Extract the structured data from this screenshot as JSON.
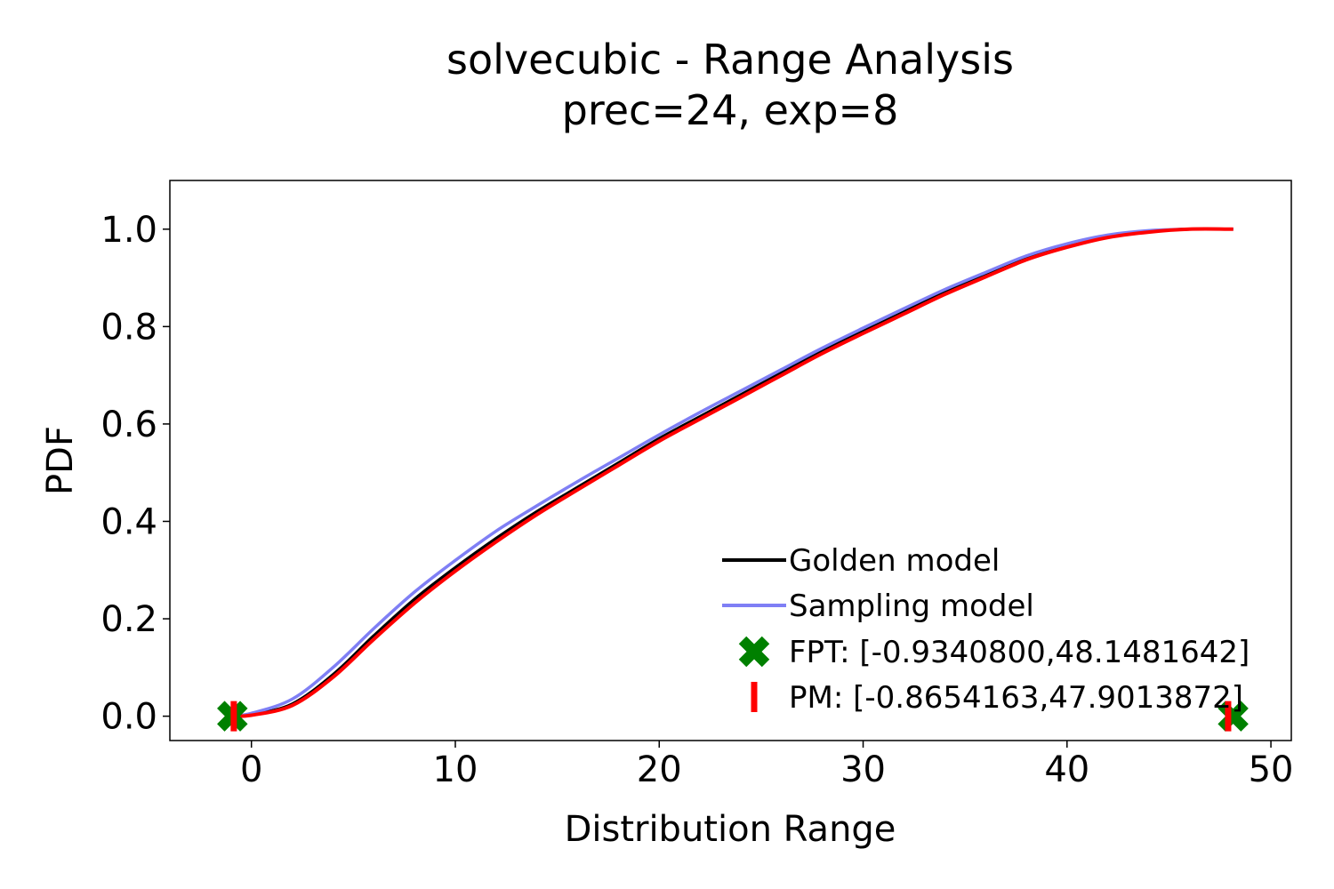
{
  "chart_data": {
    "type": "line",
    "title": "solvecubic - Range Analysis",
    "subtitle": "prec=24, exp=8",
    "xlabel": "Distribution Range",
    "ylabel": "PDF",
    "xlim": [
      -4,
      51
    ],
    "ylim": [
      -0.05,
      1.1
    ],
    "xticks": [
      0,
      10,
      20,
      30,
      40,
      50
    ],
    "yticks": [
      0.0,
      0.2,
      0.4,
      0.6,
      0.8,
      1.0
    ],
    "xtick_labels": [
      "0",
      "10",
      "20",
      "30",
      "40",
      "50"
    ],
    "ytick_labels": [
      "0.0",
      "0.2",
      "0.4",
      "0.6",
      "0.8",
      "1.0"
    ],
    "grid": false,
    "legend_position": "lower-right",
    "series": [
      {
        "name": "Golden model",
        "color": "#000000",
        "x": [
          -0.93,
          0,
          2,
          4,
          6,
          8,
          10,
          12,
          14,
          16,
          18,
          20,
          22,
          24,
          26,
          28,
          30,
          32,
          34,
          36,
          38,
          40,
          42,
          44,
          46,
          48.15
        ],
        "y": [
          0.0,
          0.003,
          0.025,
          0.085,
          0.165,
          0.24,
          0.305,
          0.365,
          0.42,
          0.47,
          0.52,
          0.57,
          0.615,
          0.66,
          0.705,
          0.75,
          0.79,
          0.83,
          0.87,
          0.905,
          0.94,
          0.965,
          0.985,
          0.995,
          1.0,
          1.0
        ]
      },
      {
        "name": "Sampling model",
        "color": "#7f7ff5",
        "x": [
          -0.93,
          0,
          2,
          4,
          6,
          8,
          10,
          12,
          14,
          16,
          18,
          20,
          22,
          24,
          26,
          28,
          30,
          32,
          34,
          36,
          38,
          40,
          42,
          44,
          46,
          48.15
        ],
        "y": [
          0.0,
          0.006,
          0.035,
          0.1,
          0.18,
          0.255,
          0.32,
          0.38,
          0.432,
          0.482,
          0.53,
          0.578,
          0.624,
          0.668,
          0.712,
          0.756,
          0.797,
          0.837,
          0.876,
          0.911,
          0.945,
          0.97,
          0.988,
          0.997,
          1.0,
          1.0
        ]
      },
      {
        "name": "",
        "color": "#ff0000",
        "x": [
          -0.93,
          0,
          2,
          4,
          6,
          8,
          10,
          12,
          14,
          16,
          18,
          20,
          22,
          24,
          26,
          28,
          30,
          32,
          34,
          36,
          38,
          40,
          42,
          44,
          46,
          48.15
        ],
        "y": [
          0.0,
          0.002,
          0.022,
          0.08,
          0.158,
          0.232,
          0.298,
          0.358,
          0.414,
          0.465,
          0.515,
          0.565,
          0.61,
          0.655,
          0.7,
          0.745,
          0.786,
          0.826,
          0.866,
          0.902,
          0.937,
          0.963,
          0.983,
          0.994,
          1.0,
          1.0
        ]
      }
    ],
    "markers": {
      "fpt": {
        "label": "FPT: [-0.9340800,48.1481642]",
        "color": "#008000",
        "x": [
          -0.93408,
          48.1481642
        ],
        "y": [
          0.0,
          0.0
        ]
      },
      "pm": {
        "label": "PM: [-0.8654163,47.9013872]",
        "color": "#ff0000",
        "x": [
          -0.8654163,
          47.9013872
        ],
        "y": [
          0.0,
          0.0
        ]
      }
    }
  }
}
